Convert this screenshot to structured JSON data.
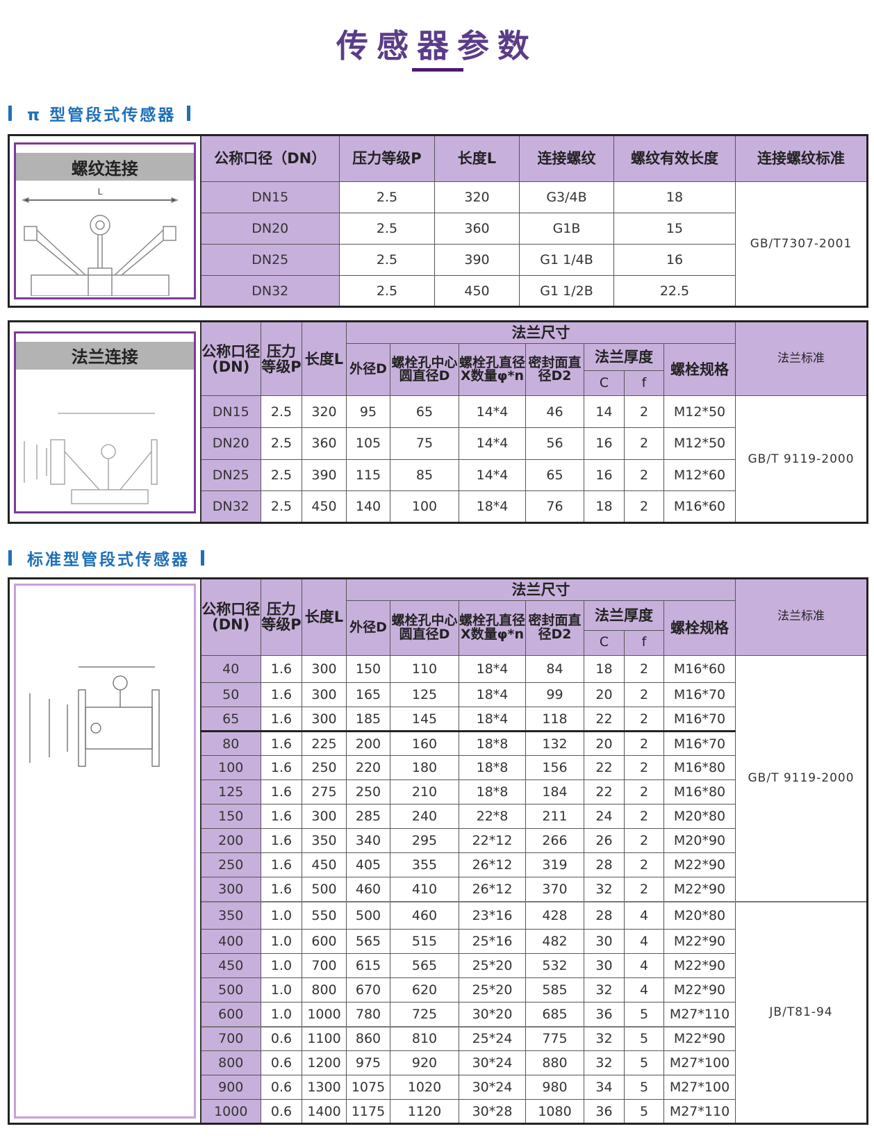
{
  "page_title": "传感器参数",
  "colors": {
    "title": "#5b3c88",
    "section": "#1e6fb8",
    "header_bg": "#c8b0dc",
    "panel_border": "#7a3b9a"
  },
  "section1": {
    "heading": "π 型管段式传感器",
    "thread": {
      "caption": "螺纹连接",
      "diagram_label": "L",
      "headers": [
        "公称口径（DN）",
        "压力等级P",
        "长度L",
        "连接螺纹",
        "螺纹有效长度",
        "连接螺纹标准"
      ],
      "standard": "GB/T7307-2001",
      "rows": [
        [
          "DN15",
          "2.5",
          "320",
          "G3/4B",
          "18"
        ],
        [
          "DN20",
          "2.5",
          "360",
          "G1B",
          "15"
        ],
        [
          "DN25",
          "2.5",
          "390",
          "G1 1/4B",
          "16"
        ],
        [
          "DN32",
          "2.5",
          "450",
          "G1 1/2B",
          "22.5"
        ]
      ]
    },
    "flange": {
      "caption": "法兰连接",
      "headers": {
        "dn": "公称口径(DN)",
        "pressure": "压力等级P",
        "length": "长度L",
        "flange_size": "法兰尺寸",
        "standard": "法兰标准",
        "outer": "外径D",
        "bolt_circle": "螺栓孔中心圆直径D",
        "bolt_hole": "螺栓孔直径X数量φ*n",
        "seal": "密封面直径D2",
        "thickness": "法兰厚度",
        "c": "C",
        "f": "f",
        "bolt": "螺栓规格"
      },
      "standard": "GB/T 9119-2000",
      "rows": [
        [
          "DN15",
          "2.5",
          "320",
          "95",
          "65",
          "14*4",
          "46",
          "14",
          "2",
          "M12*50"
        ],
        [
          "DN20",
          "2.5",
          "360",
          "105",
          "75",
          "14*4",
          "56",
          "16",
          "2",
          "M12*50"
        ],
        [
          "DN25",
          "2.5",
          "390",
          "115",
          "85",
          "14*4",
          "65",
          "16",
          "2",
          "M12*60"
        ],
        [
          "DN32",
          "2.5",
          "450",
          "140",
          "100",
          "18*4",
          "76",
          "18",
          "2",
          "M16*60"
        ]
      ]
    }
  },
  "section2": {
    "heading": "标准型管段式传感器",
    "headers": {
      "dn": "公称口径(DN)",
      "pressure": "压力等级P",
      "length": "长度L",
      "flange_size": "法兰尺寸",
      "standard": "法兰标准",
      "outer": "外径D",
      "bolt_circle": "螺栓孔中心圆直径D",
      "bolt_hole": "螺栓孔直径X数量φ*n",
      "seal": "密封面直径D2",
      "thickness": "法兰厚度",
      "c": "C",
      "f": "f",
      "bolt": "螺栓规格"
    },
    "standards": [
      "GB/T 9119-2000",
      "JB/T81-94"
    ],
    "rows": [
      [
        "40",
        "1.6",
        "300",
        "150",
        "110",
        "18*4",
        "84",
        "18",
        "2",
        "M16*60"
      ],
      [
        "50",
        "1.6",
        "300",
        "165",
        "125",
        "18*4",
        "99",
        "20",
        "2",
        "M16*70"
      ],
      [
        "65",
        "1.6",
        "300",
        "185",
        "145",
        "18*4",
        "118",
        "22",
        "2",
        "M16*70"
      ],
      [
        "80",
        "1.6",
        "225",
        "200",
        "160",
        "18*8",
        "132",
        "20",
        "2",
        "M16*70"
      ],
      [
        "100",
        "1.6",
        "250",
        "220",
        "180",
        "18*8",
        "156",
        "22",
        "2",
        "M16*80"
      ],
      [
        "125",
        "1.6",
        "275",
        "250",
        "210",
        "18*8",
        "184",
        "22",
        "2",
        "M16*80"
      ],
      [
        "150",
        "1.6",
        "300",
        "285",
        "240",
        "22*8",
        "211",
        "24",
        "2",
        "M20*80"
      ],
      [
        "200",
        "1.6",
        "350",
        "340",
        "295",
        "22*12",
        "266",
        "26",
        "2",
        "M20*90"
      ],
      [
        "250",
        "1.6",
        "450",
        "405",
        "355",
        "26*12",
        "319",
        "28",
        "2",
        "M22*90"
      ],
      [
        "300",
        "1.6",
        "500",
        "460",
        "410",
        "26*12",
        "370",
        "32",
        "2",
        "M22*90"
      ],
      [
        "350",
        "1.0",
        "550",
        "500",
        "460",
        "23*16",
        "428",
        "28",
        "4",
        "M20*80"
      ],
      [
        "400",
        "1.0",
        "600",
        "565",
        "515",
        "25*16",
        "482",
        "30",
        "4",
        "M22*90"
      ],
      [
        "450",
        "1.0",
        "700",
        "615",
        "565",
        "25*20",
        "532",
        "30",
        "4",
        "M22*90"
      ],
      [
        "500",
        "1.0",
        "800",
        "670",
        "620",
        "25*20",
        "585",
        "32",
        "4",
        "M22*90"
      ],
      [
        "600",
        "1.0",
        "1000",
        "780",
        "725",
        "30*20",
        "685",
        "36",
        "5",
        "M27*110"
      ],
      [
        "700",
        "0.6",
        "1100",
        "860",
        "810",
        "25*24",
        "775",
        "32",
        "5",
        "M22*90"
      ],
      [
        "800",
        "0.6",
        "1200",
        "975",
        "920",
        "30*24",
        "880",
        "32",
        "5",
        "M27*100"
      ],
      [
        "900",
        "0.6",
        "1300",
        "1075",
        "1020",
        "30*24",
        "980",
        "34",
        "5",
        "M27*100"
      ],
      [
        "1000",
        "0.6",
        "1400",
        "1175",
        "1120",
        "30*28",
        "1080",
        "36",
        "5",
        "M27*110"
      ]
    ]
  }
}
